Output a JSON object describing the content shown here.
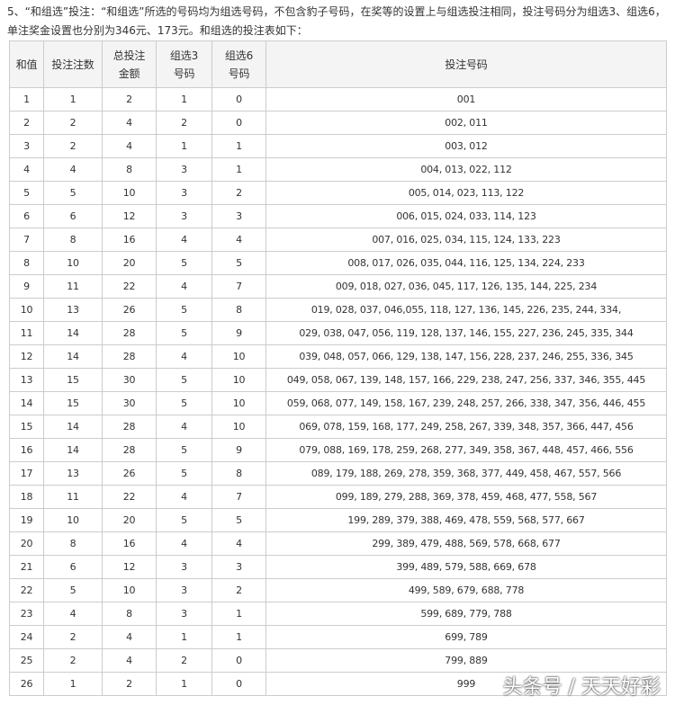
{
  "intro": [
    "5、“和组选”投注：“和组选”所选的号码均为组选号码，不包含豹子号码，在奖等的设置上与组选投注相同，投注号码分为组选3、组选6，",
    "单注奖金设置也分别为346元、173元。和组选的投注表如下："
  ],
  "table": {
    "header": [
      [
        "和值"
      ],
      [
        "投注注数"
      ],
      [
        "总投注",
        "金额"
      ],
      [
        "组选3",
        "号码"
      ],
      [
        "组选6",
        "号码"
      ],
      [
        "投注号码"
      ]
    ],
    "rows": [
      [
        1,
        1,
        2,
        1,
        0,
        "001"
      ],
      [
        2,
        2,
        4,
        2,
        0,
        "002, 011"
      ],
      [
        3,
        2,
        4,
        1,
        1,
        "003, 012"
      ],
      [
        4,
        4,
        8,
        3,
        1,
        "004, 013, 022, 112"
      ],
      [
        5,
        5,
        10,
        3,
        2,
        "005, 014, 023, 113, 122"
      ],
      [
        6,
        6,
        12,
        3,
        3,
        "006, 015, 024, 033, 114, 123"
      ],
      [
        7,
        8,
        16,
        4,
        4,
        "007, 016, 025, 034, 115, 124, 133, 223"
      ],
      [
        8,
        10,
        20,
        5,
        5,
        "008, 017, 026, 035, 044, 116, 125, 134, 224, 233"
      ],
      [
        9,
        11,
        22,
        4,
        7,
        "009, 018, 027, 036, 045, 117, 126, 135, 144, 225, 234"
      ],
      [
        10,
        13,
        26,
        5,
        8,
        "019, 028, 037, 046,055, 118, 127, 136, 145, 226, 235, 244, 334,"
      ],
      [
        11,
        14,
        28,
        5,
        9,
        "029, 038, 047, 056, 119, 128, 137, 146, 155, 227, 236, 245, 335, 344"
      ],
      [
        12,
        14,
        28,
        4,
        10,
        "039, 048, 057, 066, 129, 138, 147, 156, 228, 237, 246, 255, 336, 345"
      ],
      [
        13,
        15,
        30,
        5,
        10,
        "049, 058, 067, 139, 148, 157, 166, 229, 238, 247, 256, 337, 346, 355, 445"
      ],
      [
        14,
        15,
        30,
        5,
        10,
        "059, 068, 077, 149, 158, 167, 239, 248, 257, 266, 338, 347, 356, 446, 455"
      ],
      [
        15,
        14,
        28,
        4,
        10,
        "069, 078, 159, 168, 177, 249, 258, 267, 339, 348, 357, 366, 447, 456"
      ],
      [
        16,
        14,
        28,
        5,
        9,
        "079, 088, 169, 178, 259, 268, 277, 349, 358, 367, 448, 457, 466, 556"
      ],
      [
        17,
        13,
        26,
        5,
        8,
        "089, 179, 188, 269, 278, 359, 368, 377, 449, 458, 467, 557, 566"
      ],
      [
        18,
        11,
        22,
        4,
        7,
        "099, 189, 279, 288, 369, 378, 459, 468, 477, 558, 567"
      ],
      [
        19,
        10,
        20,
        5,
        5,
        "199, 289, 379, 388, 469, 478, 559, 568, 577, 667"
      ],
      [
        20,
        8,
        16,
        4,
        4,
        "299, 389, 479, 488, 569, 578, 668, 677"
      ],
      [
        21,
        6,
        12,
        3,
        3,
        "399, 489, 579, 588, 669, 678"
      ],
      [
        22,
        5,
        10,
        3,
        2,
        "499, 589, 679, 688, 778"
      ],
      [
        23,
        4,
        8,
        3,
        1,
        "599, 689, 779, 788"
      ],
      [
        24,
        2,
        4,
        1,
        1,
        "699, 789"
      ],
      [
        25,
        2,
        4,
        2,
        0,
        "799, 889"
      ],
      [
        26,
        1,
        2,
        1,
        0,
        "999"
      ]
    ]
  },
  "watermark": "头条号 / 天天好彩"
}
